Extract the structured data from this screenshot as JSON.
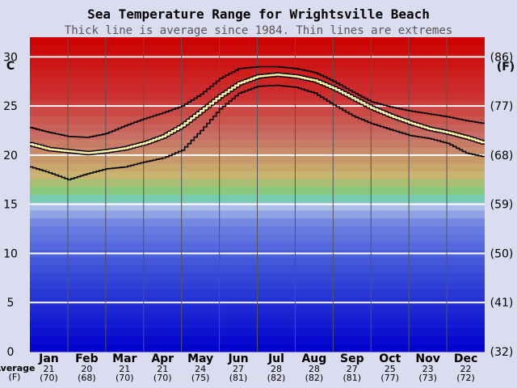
{
  "chart_data": {
    "type": "line",
    "title": "Sea Temperature Range for Wrightsville Beach",
    "subtitle": "Thick line is average since 1984. Thin lines are extremes",
    "ylabel_left": "C",
    "ylabel_right": "(F)",
    "ylim": [
      0,
      32
    ],
    "xlim": [
      0,
      12
    ],
    "grid": true,
    "yticks_c": [
      "0",
      "5",
      "10",
      "15",
      "20",
      "25",
      "30"
    ],
    "yticks_f": [
      "(32)",
      "(41)",
      "(50)",
      "(59)",
      "(68)",
      "(77)",
      "(86)"
    ],
    "months": [
      "Jan",
      "Feb",
      "Mar",
      "Apr",
      "May",
      "Jun",
      "Jul",
      "Aug",
      "Sep",
      "Oct",
      "Nov",
      "Dec"
    ],
    "monthly_avg_c": [
      "21",
      "20",
      "21",
      "21",
      "24",
      "27",
      "28",
      "28",
      "27",
      "25",
      "23",
      "22"
    ],
    "monthly_avg_f": [
      "(70)",
      "(68)",
      "(70)",
      "(70)",
      "(75)",
      "(81)",
      "(82)",
      "(82)",
      "(81)",
      "(77)",
      "(73)",
      "(72)"
    ],
    "avg_row_label_1": "Average",
    "avg_row_label_2": "(F)",
    "series": [
      {
        "role": "average",
        "x": [
          0,
          0.5,
          1,
          1.5,
          2,
          2.5,
          3,
          3.5,
          4,
          4.5,
          5,
          5.5,
          6,
          6.5,
          7,
          7.5,
          8,
          8.5,
          9,
          9.5,
          10,
          10.5,
          11,
          11.5,
          12
        ],
        "y": [
          21.1,
          20.6,
          20.4,
          20.2,
          20.4,
          20.7,
          21.2,
          21.9,
          23.0,
          24.5,
          26.0,
          27.3,
          28.0,
          28.2,
          28.0,
          27.6,
          26.8,
          25.8,
          24.8,
          24.0,
          23.3,
          22.7,
          22.3,
          21.8,
          21.2
        ]
      },
      {
        "role": "max",
        "x": [
          0,
          0.5,
          1,
          1.5,
          2,
          2.5,
          3,
          3.5,
          4,
          4.5,
          5,
          5.5,
          6,
          6.5,
          7,
          7.5,
          8,
          8.5,
          9,
          9.5,
          10,
          10.5,
          11,
          11.5,
          12
        ],
        "y": [
          22.8,
          22.3,
          21.9,
          21.8,
          22.2,
          23.0,
          23.7,
          24.3,
          25.0,
          26.2,
          27.8,
          28.8,
          29.0,
          29.0,
          28.8,
          28.4,
          27.5,
          26.4,
          25.4,
          24.9,
          24.5,
          24.2,
          23.9,
          23.5,
          23.2
        ]
      },
      {
        "role": "min",
        "x": [
          0,
          0.5,
          1,
          1.5,
          2,
          2.5,
          3,
          3.5,
          4,
          4.5,
          5,
          5.5,
          6,
          6.5,
          7,
          7.5,
          8,
          8.5,
          9,
          9.5,
          10,
          10.5,
          11,
          11.5,
          12
        ],
        "y": [
          18.8,
          18.2,
          17.5,
          18.1,
          18.6,
          18.8,
          19.3,
          19.7,
          20.5,
          22.5,
          24.7,
          26.3,
          27.0,
          27.1,
          26.9,
          26.3,
          25.1,
          24.0,
          23.2,
          22.6,
          22.0,
          21.7,
          21.2,
          20.2,
          19.8
        ]
      }
    ]
  },
  "colors": {
    "background": "#dcdcf0",
    "grid_line": "#ffffff",
    "month_line": "#555555",
    "extreme_line": "#000000",
    "average_outer": "#000000",
    "average_inner": "#fff0a8",
    "text": "#000000",
    "subtitle_text": "#555555"
  }
}
